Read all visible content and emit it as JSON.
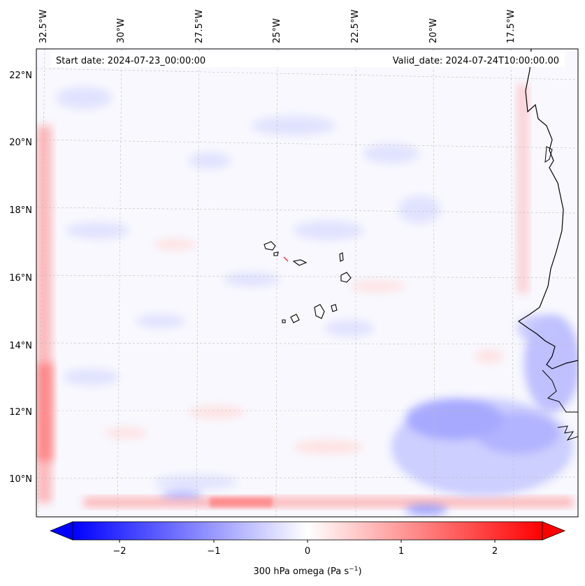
{
  "map": {
    "start_label": "Start date: 2024-07-23_00:00:00",
    "valid_label": "Valid_date: 2024-07-24T10:00:00.00",
    "lon_labels": [
      "32.5°W",
      "30°W",
      "27.5°W",
      "25°W",
      "22.5°W",
      "20°W",
      "17.5°W"
    ],
    "lat_labels": [
      "22°N",
      "20°N",
      "18°N",
      "16°N",
      "14°N",
      "12°N",
      "10°N"
    ],
    "field": "300 hPa omega"
  },
  "colorbar": {
    "tick_labels": [
      "−2",
      "−1",
      "0",
      "1",
      "2"
    ],
    "label_main": "300 hPa omega (Pa s",
    "label_exp": "−1",
    "label_close": ")",
    "min_color": "#0000ff",
    "mid_color": "#ffffff",
    "max_color": "#ff0000"
  }
}
